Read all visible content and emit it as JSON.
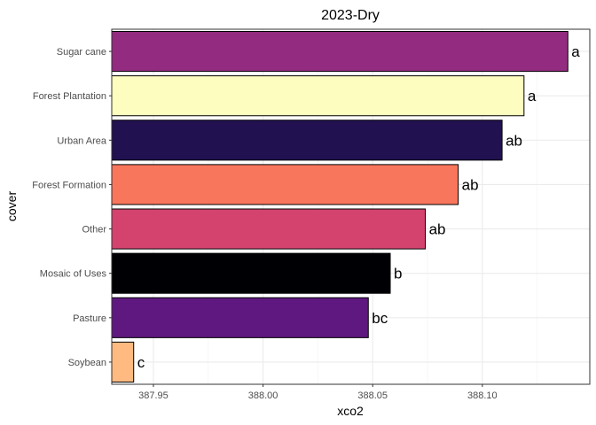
{
  "chart_data": {
    "type": "bar",
    "orientation": "horizontal",
    "title": "2023-Dry",
    "xlabel": "xco2",
    "ylabel": "cover",
    "xlim": [
      387.931,
      388.149
    ],
    "x_ticks": [
      "387.95",
      "388.00",
      "388.05",
      "388.10"
    ],
    "x_tick_values": [
      387.95,
      388.0,
      388.05,
      388.1
    ],
    "grid": true,
    "legend": "none",
    "categories": [
      "Sugar cane",
      "Forest Plantation",
      "Urban Area",
      "Forest Formation",
      "Other",
      "Mosaic of Uses",
      "Pasture",
      "Soybean"
    ],
    "values": [
      388.139,
      388.119,
      388.109,
      388.089,
      388.074,
      388.058,
      388.048,
      387.941
    ],
    "labels": [
      "a",
      "a",
      "ab",
      "ab",
      "ab",
      "b",
      "bc",
      "c"
    ],
    "colors": [
      "#932B80",
      "#FCFDBF",
      "#221150",
      "#F8765C",
      "#D3436E",
      "#000004",
      "#5F187F",
      "#FEBA80"
    ]
  }
}
